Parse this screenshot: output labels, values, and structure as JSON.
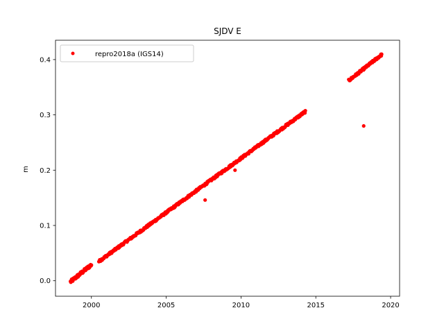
{
  "chart_data": {
    "type": "scatter",
    "title": "SJDV E",
    "xlabel": "",
    "ylabel": "m",
    "xlim": [
      1997.6,
      2020.6
    ],
    "ylim": [
      -0.028,
      0.435
    ],
    "xticks": [
      2000,
      2005,
      2010,
      2015,
      2020
    ],
    "yticks": [
      0.0,
      0.1,
      0.2,
      0.3,
      0.4
    ],
    "ytick_labels": [
      "0.0",
      "0.1",
      "0.2",
      "0.3",
      "0.4"
    ],
    "legend_position": "top-left",
    "grid": false,
    "series": [
      {
        "name": "repro2018a (IGS14)",
        "color": "#ff0000",
        "segments": [
          {
            "x_start": 1998.6,
            "x_end": 2000.0,
            "y_start": -0.002,
            "y_end": 0.029,
            "n": 55,
            "noise": 0.003
          },
          {
            "x_start": 2000.5,
            "x_end": 2014.3,
            "y_start": 0.035,
            "y_end": 0.306,
            "n": 500,
            "noise": 0.002
          },
          {
            "x_start": 2017.2,
            "x_end": 2019.4,
            "y_start": 0.362,
            "y_end": 0.409,
            "n": 90,
            "noise": 0.002
          }
        ],
        "outliers": [
          {
            "x": 2007.6,
            "y": 0.146
          },
          {
            "x": 2009.6,
            "y": 0.2
          },
          {
            "x": 2018.2,
            "y": 0.28
          }
        ]
      }
    ]
  }
}
